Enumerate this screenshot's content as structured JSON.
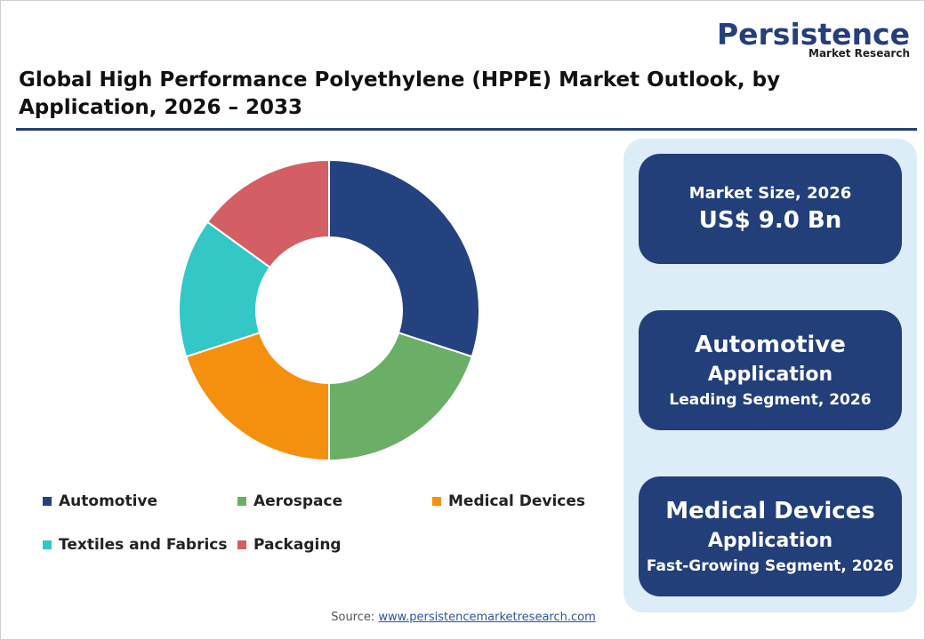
{
  "header": {
    "logo": "Persistence",
    "logo_sub": "Market Research",
    "title": "Global High Performance Polyethylene (HPPE) Market Outlook, by Application, 2026 – 2033"
  },
  "chart_data": {
    "type": "donut",
    "categories": [
      "Automotive",
      "Aerospace",
      "Medical Devices",
      "Textiles and Fabrics",
      "Packaging"
    ],
    "values": [
      30,
      20,
      20,
      15,
      15
    ],
    "colors": [
      "#23427f",
      "#6aaf65",
      "#f5900f",
      "#33c8c6",
      "#d35f64"
    ]
  },
  "panel": [
    {
      "lines": [
        "Market Size, 2026",
        "US$ 9.0 Bn"
      ]
    },
    {
      "lines": [
        "Automotive",
        "Application",
        "Leading Segment, 2026"
      ]
    },
    {
      "lines": [
        "Medical Devices",
        "Application",
        "Fast-Growing Segment, 2026"
      ]
    }
  ],
  "source": {
    "label": "Source:",
    "link": "www.persistencemarketresearch.com"
  }
}
